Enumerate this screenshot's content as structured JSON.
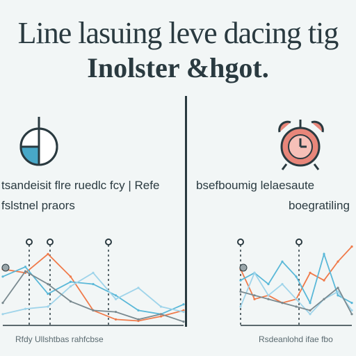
{
  "header": {
    "title": "Line lasuing leve dacing tig",
    "subtitle": "Inolster &hgot."
  },
  "left_panel": {
    "caption_line1": "tsandeisit flre ruedlc fcy | Refe",
    "caption_line2": "fslstnel praors",
    "axis_caption": "Rfdy Ullshtbas rahfcbse",
    "icon": "clock-icon"
  },
  "right_panel": {
    "caption_line1": "bsefboumig lelaesaute",
    "caption_line2": "boegratiling",
    "axis_caption": "Rsdeanlohd ifae fbo",
    "icon": "alarm-clock-icon"
  },
  "colors": {
    "orange": "#f07a4a",
    "blue": "#5ab8d8",
    "lightblue": "#9fd4ea",
    "gray": "#7a8a90",
    "ink": "#2a3a40",
    "clockface": "#48a8c8",
    "alarm": "#e8867a"
  },
  "chart_data": [
    {
      "type": "line",
      "x": [
        0,
        1,
        2,
        3,
        4,
        5,
        6,
        7,
        8
      ],
      "ylim": [
        0,
        10
      ],
      "series": [
        {
          "color": "orange",
          "values": [
            7.5,
            7.0,
            9.5,
            6.5,
            2.0,
            0.8,
            0.6,
            1.2,
            2.0
          ]
        },
        {
          "color": "blue",
          "values": [
            6.5,
            7.8,
            4.2,
            5.8,
            5.5,
            4.0,
            2.0,
            1.5,
            2.8
          ]
        },
        {
          "color": "lightblue",
          "values": [
            1.5,
            2.2,
            2.5,
            5.2,
            7.0,
            3.5,
            5.0,
            2.5,
            1.8
          ]
        },
        {
          "color": "gray",
          "values": [
            3.0,
            7.2,
            5.5,
            3.2,
            2.0,
            1.8,
            0.8,
            1.5,
            0.5
          ]
        }
      ]
    },
    {
      "type": "line",
      "x": [
        0,
        1,
        2,
        3,
        4,
        5,
        6,
        7,
        8
      ],
      "ylim": [
        0,
        10
      ],
      "series": [
        {
          "color": "orange",
          "values": [
            7.5,
            3.5,
            4.0,
            3.0,
            3.5,
            7.0,
            6.0,
            8.5,
            10.5
          ]
        },
        {
          "color": "blue",
          "values": [
            6.0,
            7.0,
            5.5,
            8.5,
            6.5,
            3.0,
            9.5,
            4.0,
            3.0
          ]
        },
        {
          "color": "lightblue",
          "values": [
            2.5,
            7.0,
            4.0,
            5.5,
            3.5,
            1.5,
            3.5,
            4.5,
            2.0
          ]
        },
        {
          "color": "gray",
          "values": [
            4.5,
            4.0,
            3.5,
            3.0,
            2.5,
            2.0,
            3.5,
            5.0,
            1.5
          ]
        }
      ]
    }
  ]
}
